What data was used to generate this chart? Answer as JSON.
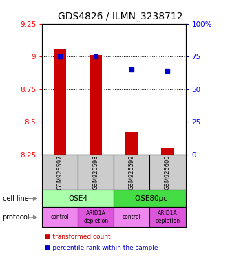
{
  "title": "GDS4826 / ILMN_3238712",
  "samples": [
    "GSM925597",
    "GSM925598",
    "GSM925599",
    "GSM925600"
  ],
  "bar_values": [
    9.06,
    9.01,
    8.42,
    8.3
  ],
  "bar_bottom": 8.25,
  "percentile_values": [
    75,
    75,
    65,
    64
  ],
  "ylim_left": [
    8.25,
    9.25
  ],
  "ylim_right": [
    0,
    100
  ],
  "yticks_left": [
    8.25,
    8.5,
    8.75,
    9.0,
    9.25
  ],
  "yticks_right": [
    0,
    25,
    50,
    75,
    100
  ],
  "ytick_labels_left": [
    "8.25",
    "8.5",
    "8.75",
    "9",
    "9.25"
  ],
  "ytick_labels_right": [
    "0",
    "25",
    "50",
    "75",
    "100%"
  ],
  "bar_color": "#cc0000",
  "dot_color": "#0000cc",
  "cell_line_groups": [
    {
      "label": "OSE4",
      "span": [
        0,
        1
      ],
      "color": "#aaffaa"
    },
    {
      "label": "IOSE80pc",
      "span": [
        2,
        3
      ],
      "color": "#44dd44"
    }
  ],
  "proto_labels": [
    "control",
    "ARID1A\ndepletion",
    "control",
    "ARID1A\ndepletion"
  ],
  "proto_colors": [
    "#ee88ee",
    "#dd55dd",
    "#ee88ee",
    "#dd55dd"
  ],
  "cell_line_row_label": "cell line",
  "protocol_row_label": "protocol",
  "legend_bar_label": "transformed count",
  "legend_dot_label": "percentile rank within the sample",
  "sample_box_color": "#cccccc",
  "title_fontsize": 10,
  "tick_fontsize": 7.5,
  "bar_width": 0.35
}
